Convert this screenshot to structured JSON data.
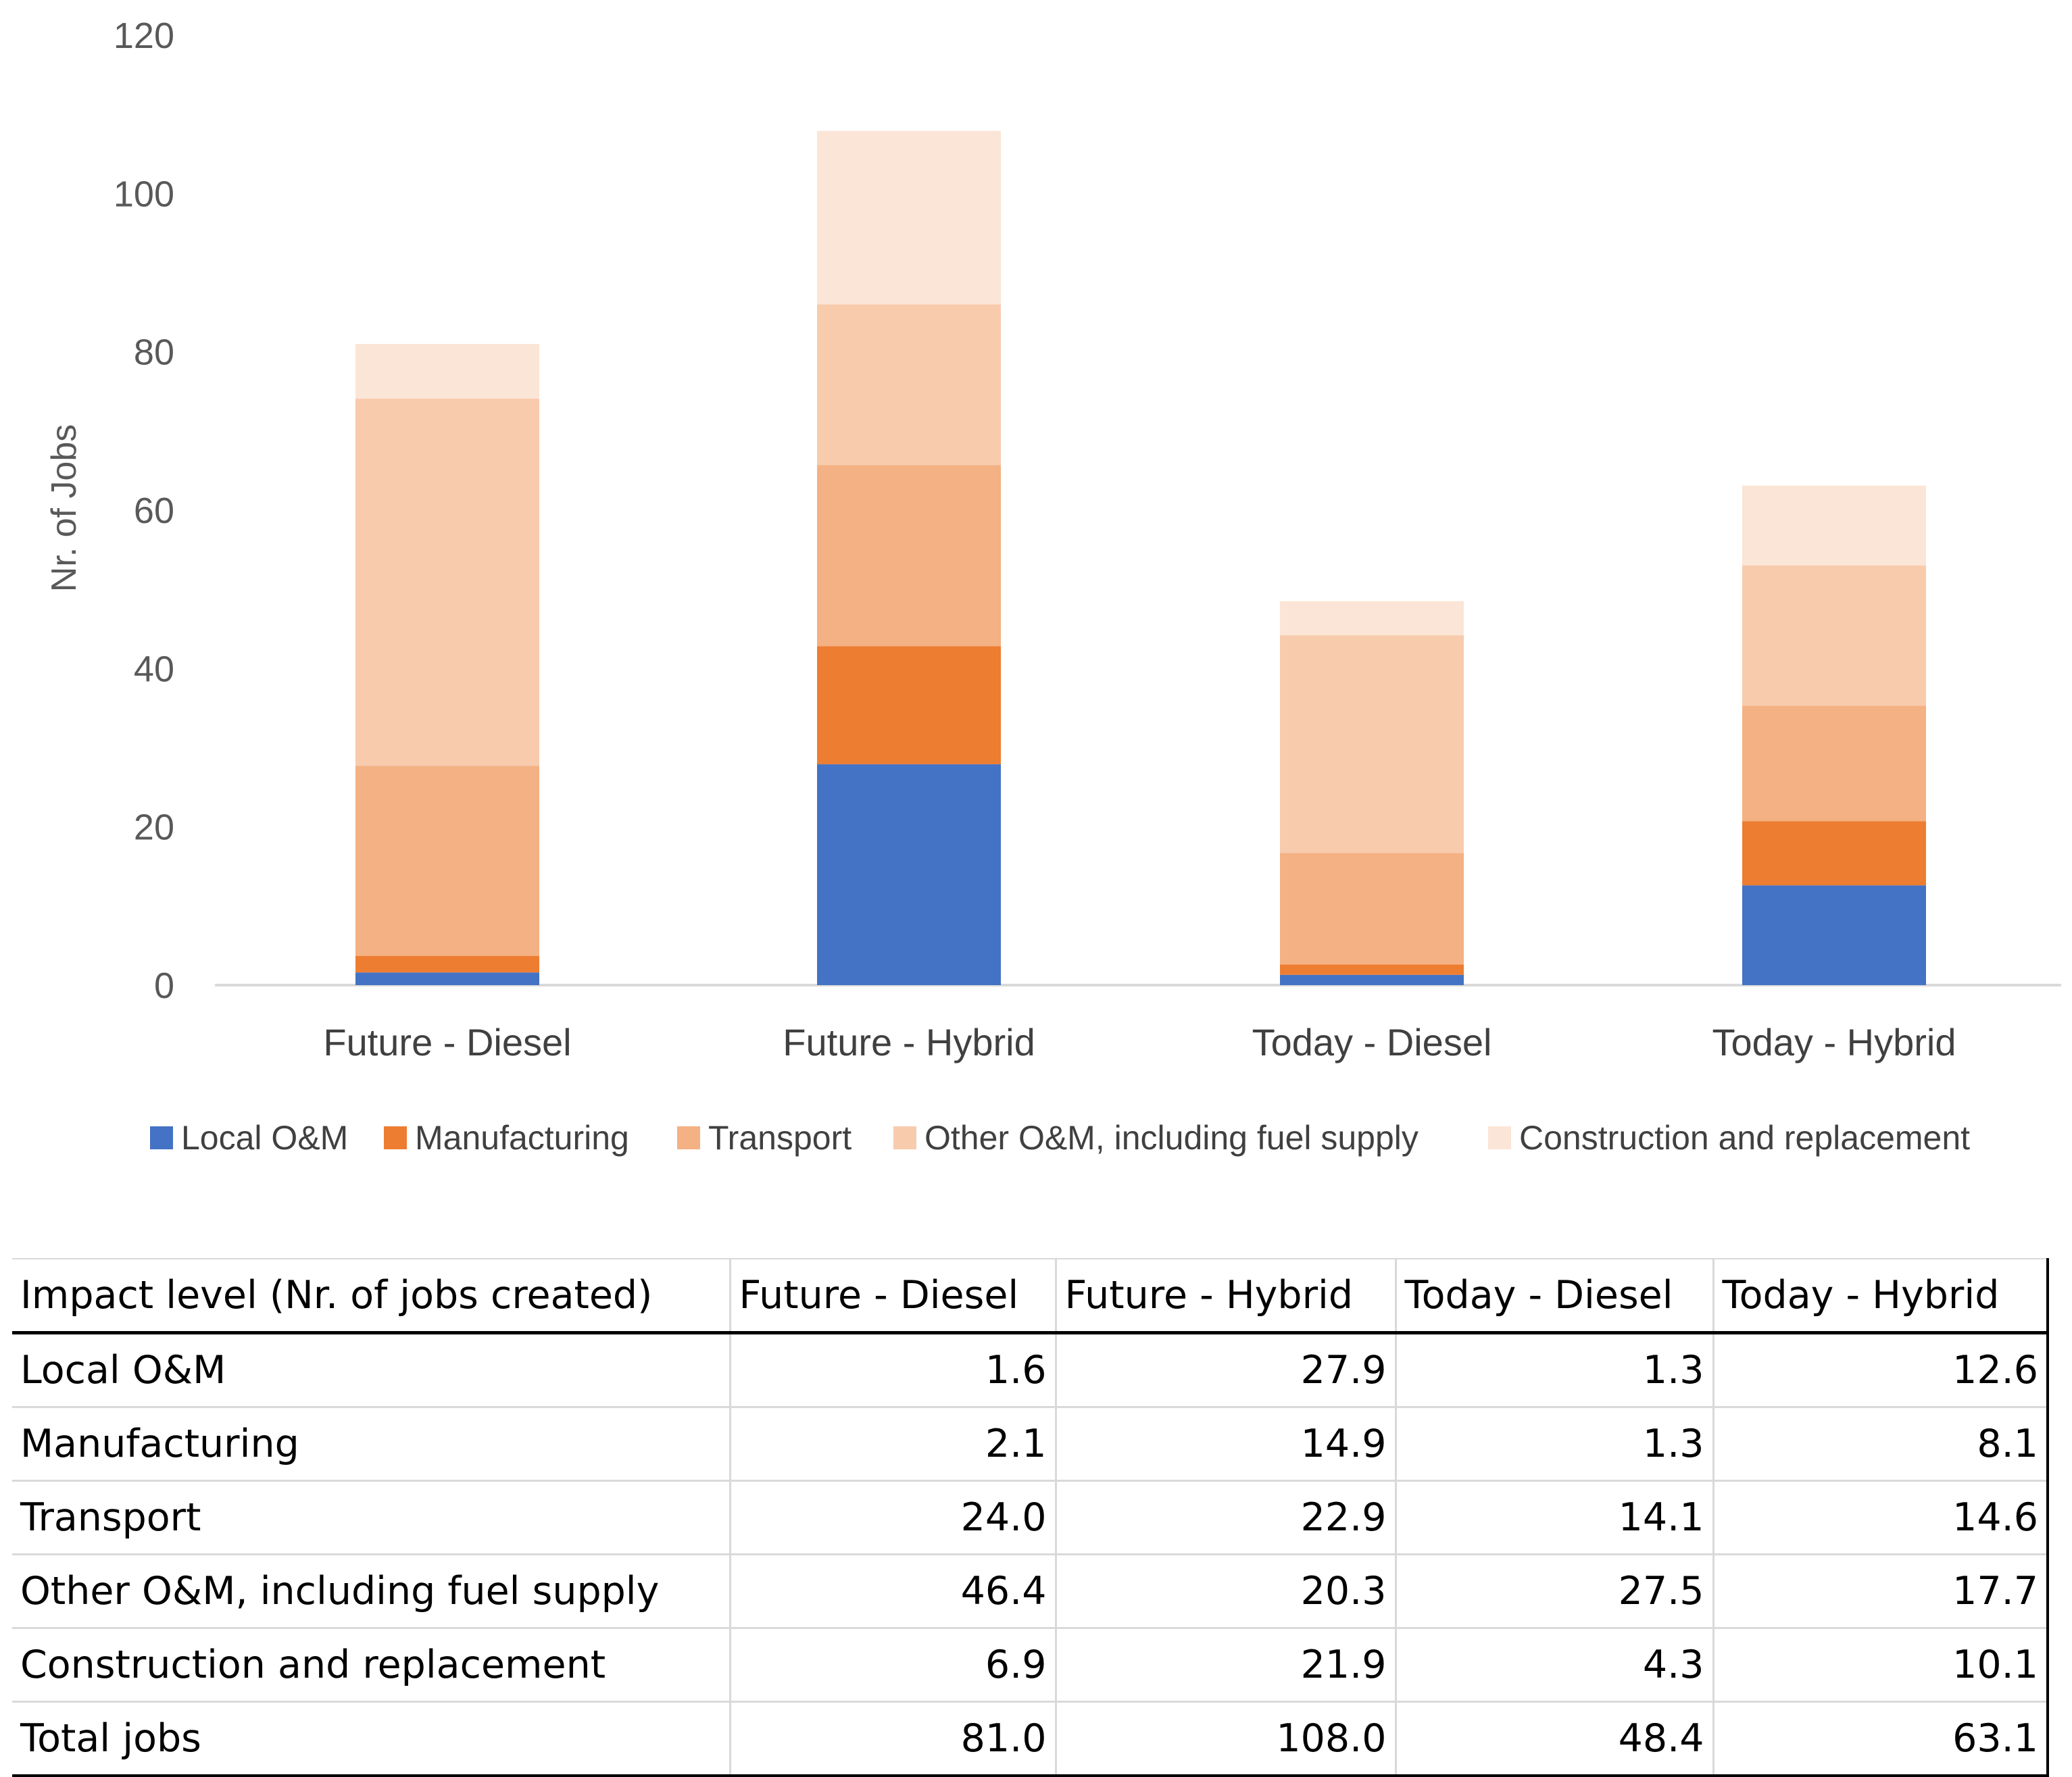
{
  "chart_data": {
    "type": "bar",
    "stacked": true,
    "categories": [
      "Future - Diesel",
      "Future - Hybrid",
      "Today - Diesel",
      "Today - Hybrid"
    ],
    "series": [
      {
        "name": "Local O&M",
        "color": "#4472c4",
        "values": [
          1.6,
          27.9,
          1.3,
          12.6
        ]
      },
      {
        "name": "Manufacturing",
        "color": "#ed7d31",
        "values": [
          2.1,
          14.9,
          1.3,
          8.1
        ]
      },
      {
        "name": "Transport",
        "color": "#f4b183",
        "values": [
          24.0,
          22.9,
          14.1,
          14.6
        ]
      },
      {
        "name": "Other O&M, including fuel supply",
        "color": "#f8cbad",
        "values": [
          46.4,
          20.3,
          27.5,
          17.7
        ]
      },
      {
        "name": "Construction and replacement",
        "color": "#fbe5d6",
        "values": [
          6.9,
          21.9,
          4.3,
          10.1
        ]
      }
    ],
    "yticks": [
      0,
      20,
      40,
      60,
      80,
      100,
      120
    ],
    "ylim": [
      0,
      120
    ],
    "ylabel": "Nr. of Jobs",
    "xlabel": "",
    "title": "",
    "legend_position": "bottom",
    "grid": false
  },
  "table": {
    "header": [
      "Impact level (Nr. of jobs created)",
      "Future - Diesel",
      "Future - Hybrid",
      "Today - Diesel",
      "Today - Hybrid"
    ],
    "rows": [
      {
        "label": "Local O&M",
        "cells": [
          "1.6",
          "27.9",
          "1.3",
          "12.6"
        ]
      },
      {
        "label": "Manufacturing",
        "cells": [
          "2.1",
          "14.9",
          "1.3",
          "8.1"
        ]
      },
      {
        "label": "Transport",
        "cells": [
          "24.0",
          "22.9",
          "14.1",
          "14.6"
        ]
      },
      {
        "label": "Other O&M, including fuel supply",
        "cells": [
          "46.4",
          "20.3",
          "27.5",
          "17.7"
        ]
      },
      {
        "label": "Construction and replacement",
        "cells": [
          "6.9",
          "21.9",
          "4.3",
          "10.1"
        ]
      },
      {
        "label": "Total jobs",
        "cells": [
          "81.0",
          "108.0",
          "48.4",
          "63.1"
        ]
      }
    ]
  }
}
